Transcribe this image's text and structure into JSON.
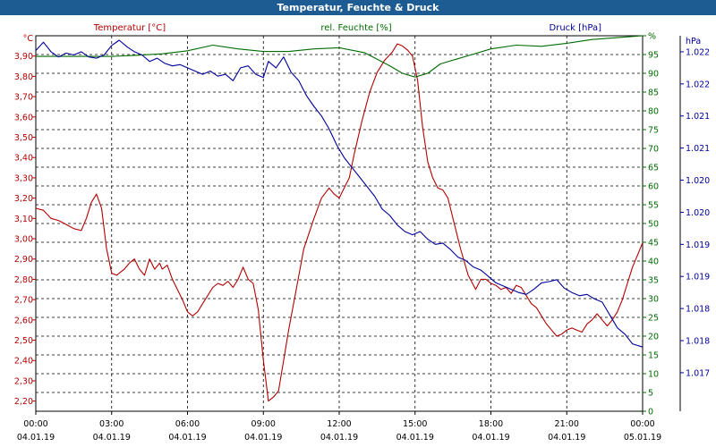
{
  "window_title": "Temperatur, Feuchte & Druck",
  "chart_data": {
    "type": "line",
    "title": "Temperatur, Feuchte & Druck",
    "colors": {
      "temperature": "#b30000",
      "humidity": "#006b00",
      "pressure": "#00009c",
      "axis": "#000000",
      "grid": "#000000"
    },
    "x_axis": {
      "unit": "hours",
      "range": [
        0,
        24
      ],
      "ticks": [
        {
          "value": 0,
          "time": "00:00",
          "date": "04.01.19"
        },
        {
          "value": 3,
          "time": "03:00",
          "date": "04.01.19"
        },
        {
          "value": 6,
          "time": "06:00",
          "date": "04.01.19"
        },
        {
          "value": 9,
          "time": "09:00",
          "date": "04.01.19"
        },
        {
          "value": 12,
          "time": "12:00",
          "date": "04.01.19"
        },
        {
          "value": 15,
          "time": "15:00",
          "date": "04.01.19"
        },
        {
          "value": 18,
          "time": "18:00",
          "date": "04.01.19"
        },
        {
          "value": 21,
          "time": "21:00",
          "date": "04.01.19"
        },
        {
          "value": 24,
          "time": "00:00",
          "date": "05.01.19"
        }
      ]
    },
    "axes": {
      "temperature": {
        "label": "Temperatur [°C]",
        "unit_label": "°C",
        "range": [
          2.15,
          4.0
        ],
        "ticks": [
          {
            "value": 3.9,
            "label": "3,90"
          },
          {
            "value": 3.8,
            "label": "3,80"
          },
          {
            "value": 3.7,
            "label": "3,70"
          },
          {
            "value": 3.6,
            "label": "3,60"
          },
          {
            "value": 3.5,
            "label": "3,50"
          },
          {
            "value": 3.4,
            "label": "3,40"
          },
          {
            "value": 3.3,
            "label": "3,30"
          },
          {
            "value": 3.2,
            "label": "3,20"
          },
          {
            "value": 3.1,
            "label": "3,10"
          },
          {
            "value": 3.0,
            "label": "3,00"
          },
          {
            "value": 2.9,
            "label": "2,90"
          },
          {
            "value": 2.8,
            "label": "2,80"
          },
          {
            "value": 2.7,
            "label": "2,70"
          },
          {
            "value": 2.6,
            "label": "2,60"
          },
          {
            "value": 2.5,
            "label": "2,50"
          },
          {
            "value": 2.4,
            "label": "2,40"
          },
          {
            "value": 2.3,
            "label": "2,30"
          },
          {
            "value": 2.2,
            "label": "2,20"
          }
        ]
      },
      "humidity": {
        "label": "rel. Feuchte [%]",
        "unit_label": "%",
        "range": [
          0,
          100
        ],
        "ticks": [
          {
            "value": 100,
            "label": "%"
          },
          {
            "value": 95,
            "label": "95"
          },
          {
            "value": 90,
            "label": "90"
          },
          {
            "value": 85,
            "label": "85"
          },
          {
            "value": 80,
            "label": "80"
          },
          {
            "value": 75,
            "label": "75"
          },
          {
            "value": 70,
            "label": "70"
          },
          {
            "value": 65,
            "label": "65"
          },
          {
            "value": 60,
            "label": "60"
          },
          {
            "value": 55,
            "label": "55"
          },
          {
            "value": 50,
            "label": "50"
          },
          {
            "value": 45,
            "label": "45"
          },
          {
            "value": 40,
            "label": "40"
          },
          {
            "value": 35,
            "label": "35"
          },
          {
            "value": 30,
            "label": "30"
          },
          {
            "value": 25,
            "label": "25"
          },
          {
            "value": 20,
            "label": "20"
          },
          {
            "value": 15,
            "label": "15"
          },
          {
            "value": 10,
            "label": "10"
          },
          {
            "value": 5,
            "label": "5"
          },
          {
            "value": 0,
            "label": "0"
          }
        ]
      },
      "pressure": {
        "label": "Druck [hPa]",
        "unit_label": "hPa",
        "range": [
          1016.7,
          1022.55
        ],
        "ticks": [
          {
            "value": 1022.3,
            "label": "1.022"
          },
          {
            "value": 1021.8,
            "label": "1.022"
          },
          {
            "value": 1021.3,
            "label": "1.021"
          },
          {
            "value": 1020.8,
            "label": "1.021"
          },
          {
            "value": 1020.3,
            "label": "1.020"
          },
          {
            "value": 1019.8,
            "label": "1.020"
          },
          {
            "value": 1019.3,
            "label": "1.019"
          },
          {
            "value": 1018.8,
            "label": "1.019"
          },
          {
            "value": 1018.3,
            "label": "1.018"
          },
          {
            "value": 1017.8,
            "label": "1.018"
          },
          {
            "value": 1017.3,
            "label": "1.017"
          }
        ]
      }
    },
    "series": [
      {
        "name": "Temperatur [°C]",
        "axis": "temperature",
        "color": "#b30000",
        "x": [
          0,
          0.3,
          0.6,
          0.9,
          1.2,
          1.5,
          1.8,
          2.0,
          2.2,
          2.4,
          2.6,
          2.8,
          3.0,
          3.2,
          3.3,
          3.5,
          3.7,
          3.9,
          4.1,
          4.3,
          4.5,
          4.7,
          4.9,
          5.0,
          5.2,
          5.4,
          5.6,
          5.8,
          6.0,
          6.2,
          6.4,
          6.6,
          6.8,
          7.0,
          7.2,
          7.4,
          7.6,
          7.8,
          8.0,
          8.2,
          8.4,
          8.6,
          8.8,
          9.0,
          9.2,
          9.4,
          9.6,
          9.8,
          10.0,
          10.3,
          10.6,
          11.0,
          11.3,
          11.6,
          11.8,
          12.0,
          12.2,
          12.4,
          12.6,
          12.9,
          13.2,
          13.5,
          13.8,
          14.1,
          14.3,
          14.5,
          14.7,
          14.9,
          15.1,
          15.3,
          15.5,
          15.7,
          15.9,
          16.1,
          16.3,
          16.5,
          16.8,
          17.1,
          17.4,
          17.6,
          17.8,
          18.0,
          18.2,
          18.4,
          18.6,
          18.8,
          19.0,
          19.2,
          19.4,
          19.6,
          19.8,
          20.0,
          20.2,
          20.4,
          20.6,
          20.8,
          21.0,
          21.2,
          21.4,
          21.6,
          21.8,
          22.0,
          22.2,
          22.4,
          22.6,
          22.8,
          23.0,
          23.2,
          23.4,
          23.6,
          23.8,
          24.0
        ],
        "values": [
          3.15,
          3.14,
          3.1,
          3.09,
          3.07,
          3.05,
          3.04,
          3.1,
          3.18,
          3.22,
          3.15,
          2.95,
          2.83,
          2.82,
          2.83,
          2.85,
          2.88,
          2.9,
          2.85,
          2.82,
          2.9,
          2.85,
          2.88,
          2.85,
          2.87,
          2.8,
          2.75,
          2.7,
          2.64,
          2.62,
          2.64,
          2.68,
          2.72,
          2.76,
          2.78,
          2.77,
          2.79,
          2.76,
          2.8,
          2.86,
          2.8,
          2.78,
          2.65,
          2.4,
          2.2,
          2.22,
          2.25,
          2.4,
          2.55,
          2.75,
          2.95,
          3.1,
          3.2,
          3.25,
          3.22,
          3.2,
          3.25,
          3.3,
          3.42,
          3.58,
          3.72,
          3.82,
          3.88,
          3.92,
          3.96,
          3.95,
          3.93,
          3.9,
          3.78,
          3.55,
          3.38,
          3.3,
          3.25,
          3.24,
          3.2,
          3.1,
          2.95,
          2.82,
          2.75,
          2.8,
          2.8,
          2.78,
          2.77,
          2.75,
          2.76,
          2.73,
          2.77,
          2.76,
          2.72,
          2.68,
          2.66,
          2.62,
          2.58,
          2.55,
          2.52,
          2.53,
          2.55,
          2.56,
          2.55,
          2.54,
          2.58,
          2.6,
          2.63,
          2.6,
          2.57,
          2.6,
          2.64,
          2.7,
          2.78,
          2.86,
          2.92,
          2.98
        ]
      },
      {
        "name": "rel. Feuchte [%]",
        "axis": "humidity",
        "color": "#006b00",
        "x": [
          0,
          1,
          2,
          3,
          4,
          5,
          6,
          7,
          8,
          9,
          10,
          11,
          12,
          13,
          14,
          14.5,
          15,
          15.5,
          16,
          17,
          18,
          19,
          20,
          21,
          22,
          23,
          24
        ],
        "values": [
          94.5,
          94.5,
          94.5,
          94.5,
          94.8,
          95.2,
          96,
          97.5,
          96.5,
          95.8,
          95.8,
          96.5,
          96.8,
          95.5,
          92,
          90,
          89,
          90,
          92.5,
          94.5,
          96.5,
          97.5,
          97.2,
          98,
          99,
          99.5,
          100
        ]
      },
      {
        "name": "Druck [hPa]",
        "axis": "pressure",
        "color": "#00009c",
        "x": [
          0,
          0.3,
          0.6,
          0.9,
          1.2,
          1.5,
          1.8,
          2.1,
          2.4,
          2.7,
          3.0,
          3.3,
          3.6,
          3.9,
          4.2,
          4.5,
          4.8,
          5.1,
          5.4,
          5.7,
          6.0,
          6.3,
          6.6,
          6.9,
          7.2,
          7.5,
          7.8,
          8.1,
          8.4,
          8.7,
          9.0,
          9.2,
          9.5,
          9.8,
          10.1,
          10.4,
          10.7,
          11.0,
          11.3,
          11.6,
          11.9,
          12.2,
          12.5,
          12.8,
          13.1,
          13.4,
          13.7,
          14.0,
          14.3,
          14.6,
          14.9,
          15.2,
          15.5,
          15.8,
          16.1,
          16.4,
          16.7,
          17.0,
          17.3,
          17.6,
          17.9,
          18.2,
          18.5,
          18.8,
          19.1,
          19.4,
          19.7,
          20.0,
          20.3,
          20.6,
          20.9,
          21.2,
          21.5,
          21.8,
          22.1,
          22.4,
          22.7,
          23.0,
          23.3,
          23.6,
          24.0
        ],
        "values": [
          1022.32,
          1022.45,
          1022.3,
          1022.22,
          1022.28,
          1022.25,
          1022.3,
          1022.22,
          1022.2,
          1022.25,
          1022.4,
          1022.48,
          1022.38,
          1022.3,
          1022.25,
          1022.15,
          1022.2,
          1022.12,
          1022.08,
          1022.1,
          1022.05,
          1022.0,
          1021.95,
          1022.0,
          1021.92,
          1021.95,
          1021.85,
          1022.05,
          1022.08,
          1021.95,
          1021.9,
          1022.15,
          1022.05,
          1022.22,
          1021.98,
          1021.85,
          1021.62,
          1021.45,
          1021.3,
          1021.1,
          1020.85,
          1020.65,
          1020.5,
          1020.35,
          1020.2,
          1020.05,
          1019.85,
          1019.75,
          1019.6,
          1019.5,
          1019.45,
          1019.5,
          1019.38,
          1019.3,
          1019.32,
          1019.22,
          1019.1,
          1019.05,
          1018.95,
          1018.9,
          1018.8,
          1018.7,
          1018.65,
          1018.6,
          1018.55,
          1018.52,
          1018.6,
          1018.7,
          1018.72,
          1018.75,
          1018.62,
          1018.55,
          1018.5,
          1018.52,
          1018.45,
          1018.4,
          1018.2,
          1018.0,
          1017.9,
          1017.75,
          1017.7
        ]
      }
    ]
  }
}
